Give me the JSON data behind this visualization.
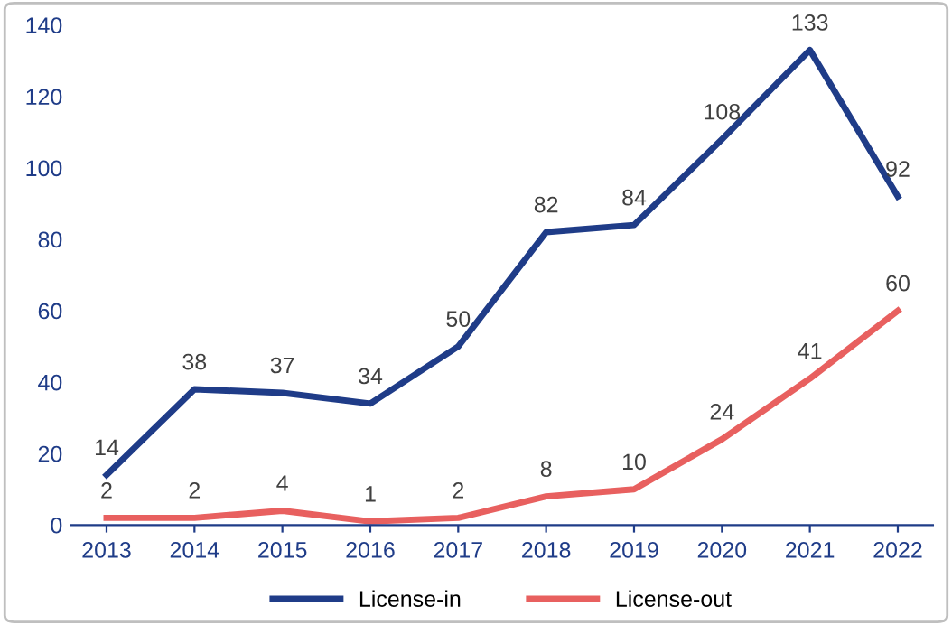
{
  "chart_data": {
    "type": "line",
    "categories": [
      "2013",
      "2014",
      "2015",
      "2016",
      "2017",
      "2018",
      "2019",
      "2020",
      "2021",
      "2022"
    ],
    "series": [
      {
        "name": "License-in",
        "color": "#1f3c88",
        "values": [
          14,
          38,
          37,
          34,
          50,
          82,
          84,
          108,
          133,
          92
        ]
      },
      {
        "name": "License-out",
        "color": "#e8605f",
        "values": [
          2,
          2,
          4,
          1,
          2,
          8,
          10,
          24,
          41,
          60
        ]
      }
    ],
    "ylim": [
      0,
      140
    ],
    "yticks": [
      0,
      20,
      40,
      60,
      80,
      100,
      120,
      140
    ],
    "data_labels": true,
    "grid": false,
    "legend": "bottom",
    "marker": "none",
    "line_style": "solid"
  }
}
